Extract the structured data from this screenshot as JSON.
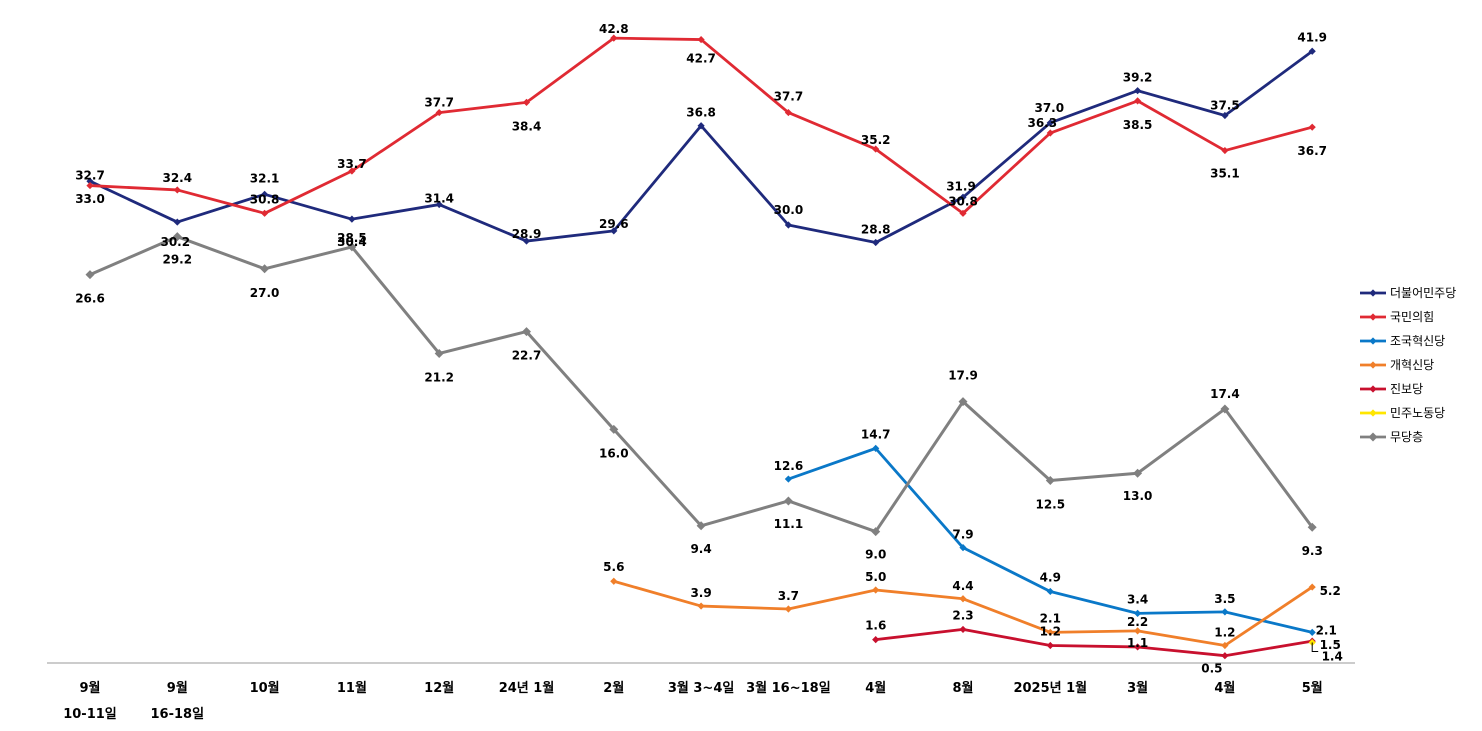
{
  "chart_data": {
    "type": "line",
    "title": "",
    "xlabel": "",
    "ylabel": "",
    "ylim": [
      0,
      45
    ],
    "grid": false,
    "legend_position": "right",
    "categories": [
      {
        "line1": "9월",
        "line2": "10-11일"
      },
      {
        "line1": "9월",
        "line2": "16-18일"
      },
      {
        "line1": "10월",
        "line2": ""
      },
      {
        "line1": "11월",
        "line2": ""
      },
      {
        "line1": "12월",
        "line2": ""
      },
      {
        "line1": "24년 1월",
        "line2": ""
      },
      {
        "line1": "2월",
        "line2": ""
      },
      {
        "line1": "3월 3~4일",
        "line2": ""
      },
      {
        "line1": "3월 16~18일",
        "line2": ""
      },
      {
        "line1": "4월",
        "line2": ""
      },
      {
        "line1": "8월",
        "line2": ""
      },
      {
        "line1": "2025년 1월",
        "line2": ""
      },
      {
        "line1": "3월",
        "line2": ""
      },
      {
        "line1": "4월",
        "line2": ""
      },
      {
        "line1": "5월",
        "line2": ""
      }
    ],
    "series": [
      {
        "name": "더불어민주당",
        "color": "#1f2a7c",
        "marker": "diamond",
        "values": [
          33.0,
          30.2,
          32.1,
          30.4,
          31.4,
          28.9,
          29.6,
          36.8,
          30.0,
          28.8,
          31.9,
          37.0,
          39.2,
          37.5,
          41.9
        ],
        "labels": [
          "33.0",
          "30.2",
          "32.1",
          "30.4",
          "31.4",
          "28.9",
          "29.6",
          "36.8",
          "30.0",
          "28.8",
          "31.9",
          "37.0",
          "39.2",
          "37.5",
          "41.9"
        ]
      },
      {
        "name": "국민의힘",
        "color": "#e02a33",
        "marker": "diamond",
        "values": [
          32.7,
          32.4,
          30.8,
          33.7,
          37.7,
          38.4,
          42.8,
          42.7,
          37.7,
          35.2,
          30.8,
          36.3,
          38.5,
          35.1,
          36.7
        ],
        "labels": [
          "32.7",
          "32.4",
          "30.8",
          "33.7",
          "37.7",
          "38.4",
          "42.8",
          "42.7",
          "37.7",
          "35.2",
          "30.8",
          "36.3",
          "38.5",
          "35.1",
          "36.7"
        ]
      },
      {
        "name": "조국혁신당",
        "color": "#0a78c8",
        "marker": "diamond",
        "values": [
          null,
          null,
          null,
          null,
          null,
          null,
          null,
          null,
          12.6,
          14.7,
          7.9,
          4.9,
          3.4,
          3.5,
          2.1
        ],
        "labels": [
          "",
          "",
          "",
          "",
          "",
          "",
          "",
          "",
          "12.6",
          "14.7",
          "7.9",
          "4.9",
          "3.4",
          "3.5",
          "2.1"
        ]
      },
      {
        "name": "개혁신당",
        "color": "#f07f2a",
        "marker": "diamond",
        "values": [
          null,
          null,
          null,
          null,
          null,
          null,
          5.6,
          3.9,
          3.7,
          5.0,
          4.4,
          2.1,
          2.2,
          1.2,
          5.2
        ],
        "labels": [
          "",
          "",
          "",
          "",
          "",
          "",
          "5.6",
          "3.9",
          "3.7",
          "5.0",
          "4.4",
          "2.1",
          "2.2",
          "1.2",
          "5.2"
        ]
      },
      {
        "name": "진보당",
        "color": "#c8102e",
        "marker": "diamond",
        "values": [
          null,
          null,
          null,
          null,
          null,
          null,
          null,
          null,
          null,
          1.6,
          2.3,
          1.2,
          1.1,
          0.5,
          1.5
        ],
        "labels": [
          "",
          "",
          "",
          "",
          "",
          "",
          "",
          "",
          "",
          "1.6",
          "2.3",
          "1.2",
          "1.1",
          "0.5",
          "1.5"
        ]
      },
      {
        "name": "민주노동당",
        "color": "#ffe600",
        "marker": "diamond",
        "values": [
          null,
          null,
          null,
          null,
          null,
          null,
          null,
          null,
          null,
          null,
          null,
          null,
          null,
          null,
          1.4
        ],
        "labels": [
          "",
          "",
          "",
          "",
          "",
          "",
          "",
          "",
          "",
          "",
          "",
          "",
          "",
          "",
          "1.4"
        ]
      },
      {
        "name": "무당층",
        "color": "#808080",
        "marker": "diamond",
        "values": [
          26.6,
          29.2,
          27.0,
          28.5,
          21.2,
          22.7,
          16.0,
          9.4,
          11.1,
          9.0,
          17.9,
          12.5,
          13.0,
          17.4,
          9.3
        ],
        "labels": [
          "26.6",
          "29.2",
          "27.0",
          "28.5",
          "21.2",
          "22.7",
          "16.0",
          "9.4",
          "11.1",
          "9.0",
          "17.9",
          "12.5",
          "13.0",
          "17.4",
          "9.3"
        ]
      }
    ]
  }
}
